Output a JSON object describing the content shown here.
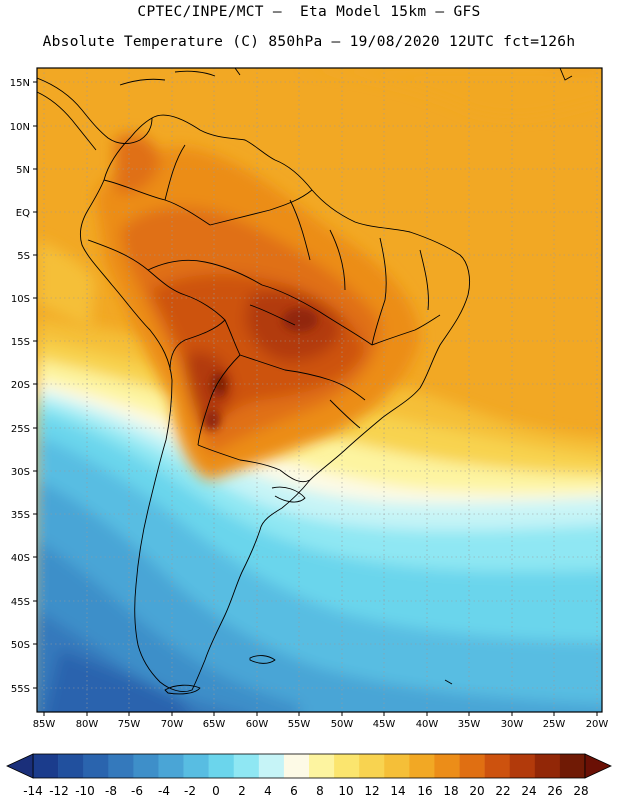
{
  "header": {
    "line1": "CPTEC/INPE/MCT –  Eta Model 15km – GFS",
    "line2": "Absolute Temperature (C) 850hPa – 19/08/2020 12UTC fct=126h"
  },
  "map": {
    "lat_labels": [
      "15N",
      "10N",
      "5N",
      "EQ",
      "5S",
      "10S",
      "15S",
      "20S",
      "25S",
      "30S",
      "35S",
      "40S",
      "45S",
      "50S",
      "55S"
    ],
    "lon_labels": [
      "85W",
      "80W",
      "75W",
      "70W",
      "65W",
      "60W",
      "55W",
      "50W",
      "45W",
      "40W",
      "35W",
      "30W",
      "25W",
      "20W"
    ]
  },
  "legend": {
    "labels": [
      "-14",
      "-12",
      "-10",
      "-8",
      "-6",
      "-4",
      "-2",
      "0",
      "2",
      "4",
      "6",
      "8",
      "10",
      "12",
      "14",
      "16",
      "18",
      "20",
      "22",
      "24",
      "26",
      "28"
    ],
    "colors": [
      "#1b3c8c",
      "#21509e",
      "#2a64ae",
      "#3479bc",
      "#3e8fc9",
      "#4aa5d6",
      "#58bde2",
      "#6bd5ec",
      "#8fe7f3",
      "#c6f4f7",
      "#fdfae6",
      "#fdf4a0",
      "#fbe56e",
      "#f8d350",
      "#f5bf38",
      "#f2a824",
      "#ec8d18",
      "#e06f12",
      "#cd520e",
      "#b23a0b",
      "#922707",
      "#701a05"
    ],
    "under_color": "#1a2f7a",
    "over_color": "#6a1005"
  }
}
